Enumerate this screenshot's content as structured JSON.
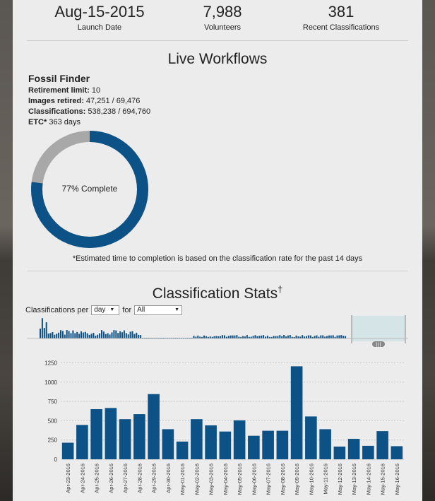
{
  "stats": [
    {
      "value": "Aug-15-2015",
      "label": "Launch Date"
    },
    {
      "value": "7,988",
      "label": "Volunteers"
    },
    {
      "value": "381",
      "label": "Recent Classifications"
    }
  ],
  "live_workflows": {
    "heading": "Live Workflows",
    "name": "Fossil Finder",
    "retirement_limit_label": "Retirement limit:",
    "retirement_limit_value": "10",
    "images_retired_label": "Images retired:",
    "images_retired_value": "47,251 / 69,476",
    "classifications_label": "Classifications:",
    "classifications_value": "538,238 / 694,760",
    "etc_label": "ETC*",
    "etc_value": "363 days",
    "progress_fraction": 0.77,
    "progress_label": "77% Complete",
    "footnote": "*Estimated time to completion is based on the classification rate for the past 14 days"
  },
  "classification_stats": {
    "heading": "Classification Stats",
    "heading_mark": "†",
    "per_label": "Classifications per",
    "per_value": "day",
    "for_label": "for",
    "for_value": "All"
  },
  "colors": {
    "bar": "#0c5286",
    "donut_fill": "#0c5286",
    "donut_rest": "#a8a8a8",
    "mini_highlight": "#e8a23a"
  },
  "chart_data": {
    "type": "bar",
    "categories": [
      "Apr-23-2016",
      "Apr-24-2016",
      "Apr-25-2016",
      "Apr-26-2016",
      "Apr-27-2016",
      "Apr-28-2016",
      "Apr-29-2016",
      "Apr-30-2016",
      "May-01-2016",
      "May-02-2016",
      "May-03-2016",
      "May-04-2016",
      "May-05-2016",
      "May-06-2016",
      "May-07-2016",
      "May-08-2016",
      "May-09-2016",
      "May-10-2016",
      "May-11-2016",
      "May-12-2016",
      "May-13-2016",
      "May-14-2016",
      "May-15-2016",
      "May-16-2016"
    ],
    "values": [
      215,
      445,
      650,
      665,
      520,
      585,
      845,
      390,
      230,
      520,
      440,
      360,
      505,
      305,
      370,
      370,
      1205,
      555,
      390,
      165,
      265,
      175,
      365,
      170
    ],
    "yticks": [
      0,
      250,
      500,
      750,
      1000,
      1250
    ],
    "ylim": [
      0,
      1300
    ],
    "grid": true
  }
}
